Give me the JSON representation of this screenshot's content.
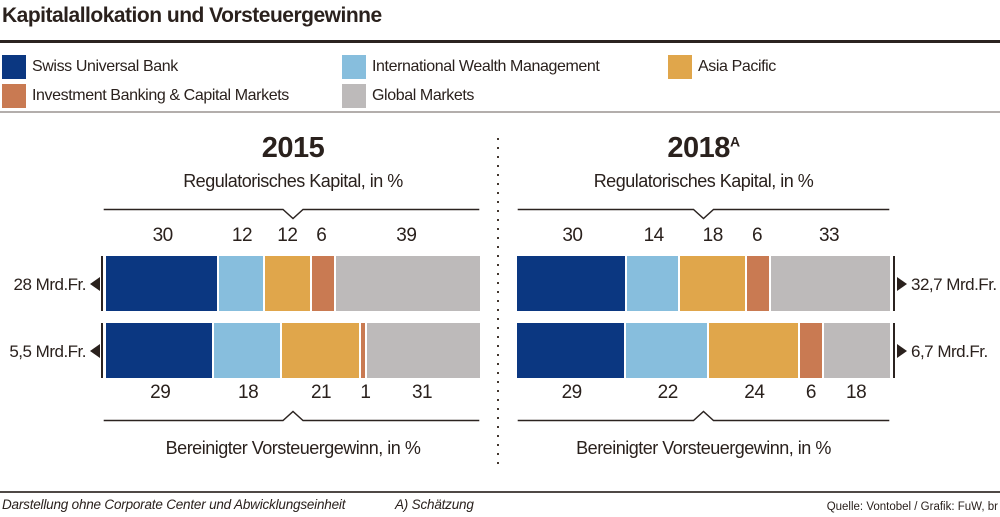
{
  "title": "Kapitalallokation und Vorsteuergewinne",
  "colors": {
    "series": [
      "#0b3781",
      "#87bedd",
      "#e0a64b",
      "#c97a52",
      "#bdbaba"
    ],
    "text": "#2a211d"
  },
  "legend": {
    "items": [
      {
        "label": "Swiss Universal Bank"
      },
      {
        "label": "International Wealth Management"
      },
      {
        "label": "Asia Pacific"
      },
      {
        "label": "Investment Banking & Capital Markets"
      },
      {
        "label": "Global Markets"
      }
    ]
  },
  "chart_data": [
    {
      "type": "bar",
      "orientation": "horizontal-stacked",
      "year": "2015",
      "year_superscript": "",
      "top_axis_label": "Regulatorisches Kapital, in %",
      "bottom_axis_label": "Bereinigter Vorsteuergewinn, in %",
      "series_labels": [
        "Swiss Universal Bank",
        "International Wealth Management",
        "Asia Pacific",
        "Investment Banking & Capital Markets",
        "Global Markets"
      ],
      "total_label_side": "left",
      "rows": [
        {
          "metric": "Regulatorisches Kapital, in %",
          "total_label": "28 Mrd.Fr.",
          "values": [
            30,
            12,
            12,
            6,
            39
          ]
        },
        {
          "metric": "Bereinigter Vorsteuergewinn, in %",
          "total_label": "5,5 Mrd.Fr.",
          "values": [
            29,
            18,
            21,
            1,
            31
          ]
        }
      ]
    },
    {
      "type": "bar",
      "orientation": "horizontal-stacked",
      "year": "2018",
      "year_superscript": "A",
      "top_axis_label": "Regulatorisches Kapital, in %",
      "bottom_axis_label": "Bereinigter Vorsteuergewinn, in %",
      "series_labels": [
        "Swiss Universal Bank",
        "International Wealth Management",
        "Asia Pacific",
        "Investment Banking & Capital Markets",
        "Global Markets"
      ],
      "total_label_side": "right",
      "rows": [
        {
          "metric": "Regulatorisches Kapital, in %",
          "total_label": "32,7 Mrd.Fr.",
          "values": [
            30,
            14,
            18,
            6,
            33
          ]
        },
        {
          "metric": "Bereinigter Vorsteuergewinn, in %",
          "total_label": "6,7 Mrd.Fr.",
          "values": [
            29,
            22,
            24,
            6,
            18
          ]
        }
      ]
    }
  ],
  "footer": {
    "note": "Darstellung ohne Corporate Center und Abwicklungseinheit",
    "footnote": "A) Schätzung",
    "source": "Quelle: Vontobel / Grafik: FuW, br"
  }
}
